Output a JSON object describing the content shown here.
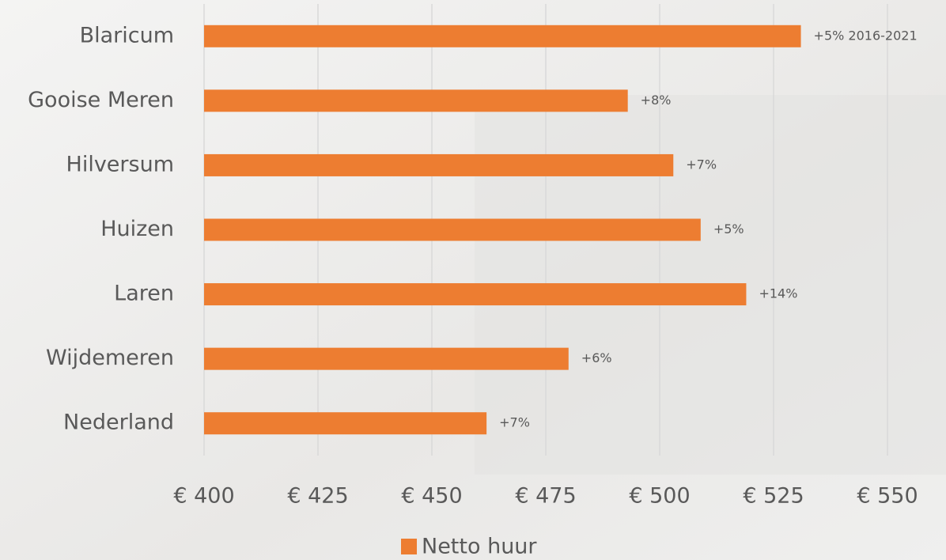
{
  "chart_data": {
    "type": "bar",
    "orientation": "horizontal",
    "categories": [
      "Blaricum",
      "Gooise Meren",
      "Hilversum",
      "Huizen",
      "Laren",
      "Wijdemeren",
      "Nederland"
    ],
    "series": [
      {
        "name": "Netto huur",
        "color": "#ed7d31",
        "values": [
          531,
          493,
          503,
          509,
          519,
          480,
          462
        ],
        "bar_labels": [
          "+5% 2016-2021",
          "+8%",
          "+7%",
          "+5%",
          "+14%",
          "+6%",
          "+7%"
        ]
      }
    ],
    "xlim": [
      400,
      550
    ],
    "xticks": [
      {
        "value": 400,
        "label": "€ 400"
      },
      {
        "value": 425,
        "label": "€ 425"
      },
      {
        "value": 450,
        "label": "€ 450"
      },
      {
        "value": 475,
        "label": "€ 475"
      },
      {
        "value": 500,
        "label": "€ 500"
      },
      {
        "value": 525,
        "label": "€ 525"
      },
      {
        "value": 550,
        "label": "€ 550"
      }
    ],
    "grid": true,
    "legend": "bottom"
  }
}
